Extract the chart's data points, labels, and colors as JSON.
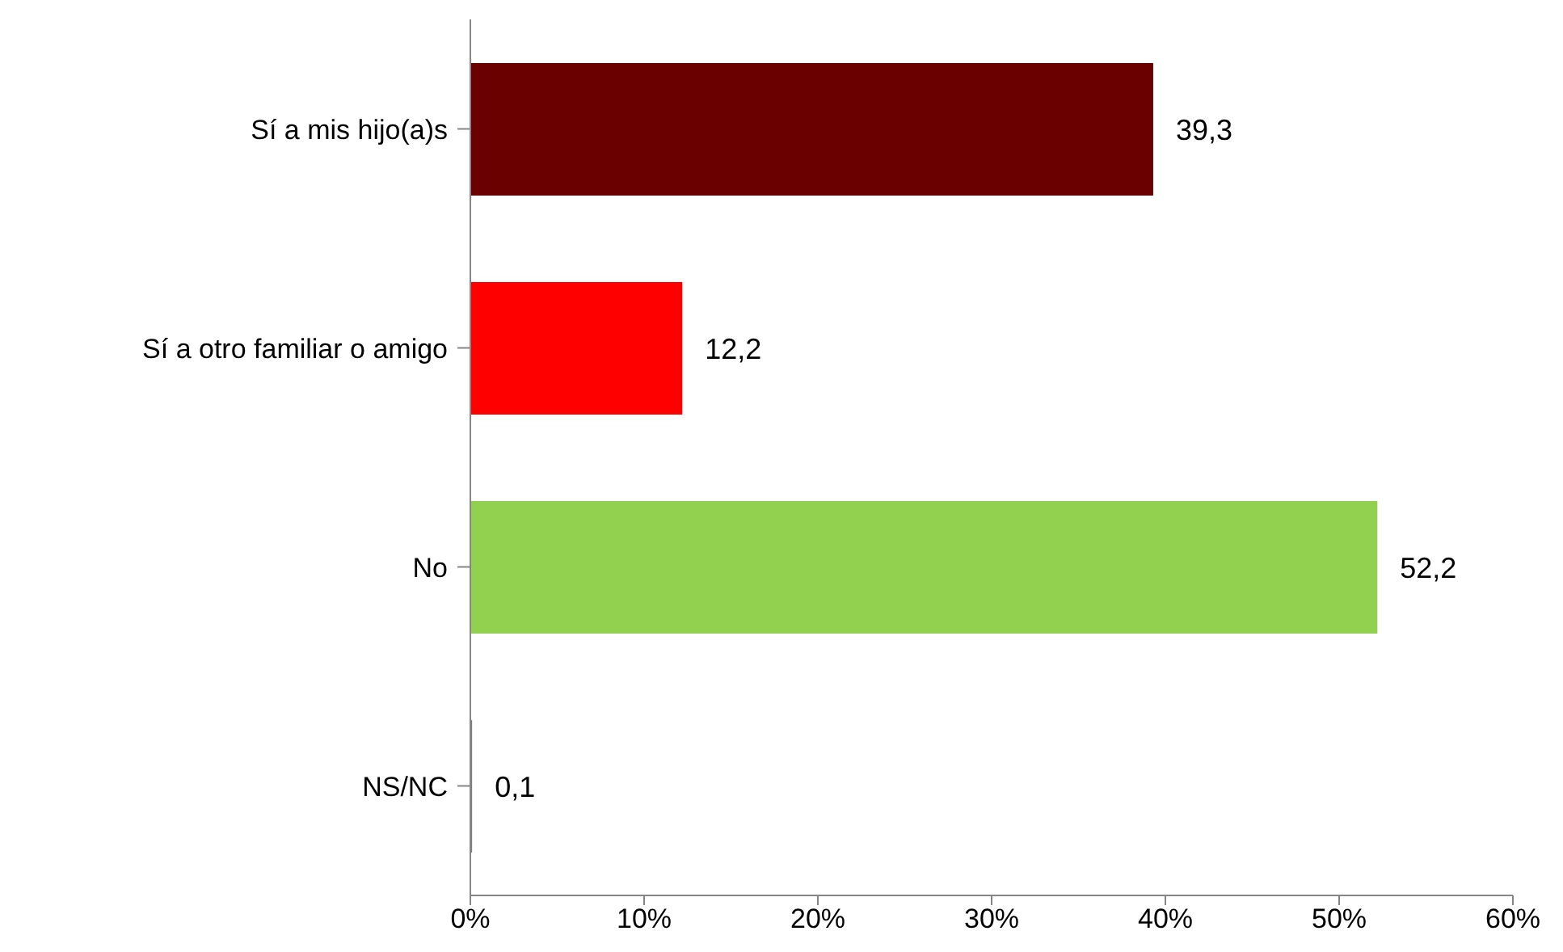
{
  "chart_data": {
    "type": "bar",
    "orientation": "horizontal",
    "categories": [
      "Sí a mis hijo(a)s",
      "Sí a otro familiar o amigo",
      "No",
      "NS/NC"
    ],
    "values": [
      39.3,
      12.2,
      52.2,
      0.1
    ],
    "colors": [
      "#6b0000",
      "#ff0000",
      "#92d050",
      "#7f7f7f"
    ],
    "value_labels": [
      "39,3",
      "12,2",
      "52,2",
      "0,1"
    ],
    "xlim": [
      0,
      60
    ],
    "xticks": [
      {
        "value": 0,
        "label": "0%"
      },
      {
        "value": 10,
        "label": "10%"
      },
      {
        "value": 20,
        "label": "20%"
      },
      {
        "value": 30,
        "label": "30%"
      },
      {
        "value": 40,
        "label": "40%"
      },
      {
        "value": 50,
        "label": "50%"
      },
      {
        "value": 60,
        "label": "60%"
      }
    ],
    "grid": false,
    "legend": false
  }
}
